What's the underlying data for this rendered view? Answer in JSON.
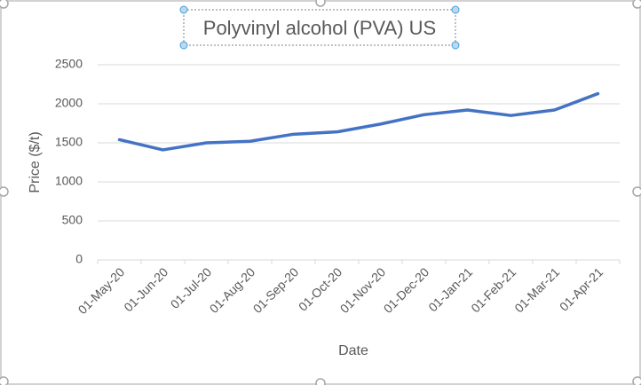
{
  "chart_data": {
    "type": "line",
    "title": "Polyvinyl alcohol (PVA) US",
    "x_label": "Date",
    "y_label": "Price ($/t)",
    "categories": [
      "01-May-20",
      "01-Jun-20",
      "01-Jul-20",
      "01-Aug-20",
      "01-Sep-20",
      "01-Oct-20",
      "01-Nov-20",
      "01-Dec-20",
      "01-Jan-21",
      "01-Feb-21",
      "01-Mar-21",
      "01-Apr-21"
    ],
    "values": [
      1540,
      1410,
      1500,
      1520,
      1610,
      1640,
      1740,
      1860,
      1920,
      1850,
      1920,
      2130
    ],
    "color": "#4472c4",
    "ylim": [
      0,
      2500
    ],
    "yticks": [
      0,
      500,
      1000,
      1500,
      2000,
      2500
    ],
    "grid": true
  }
}
